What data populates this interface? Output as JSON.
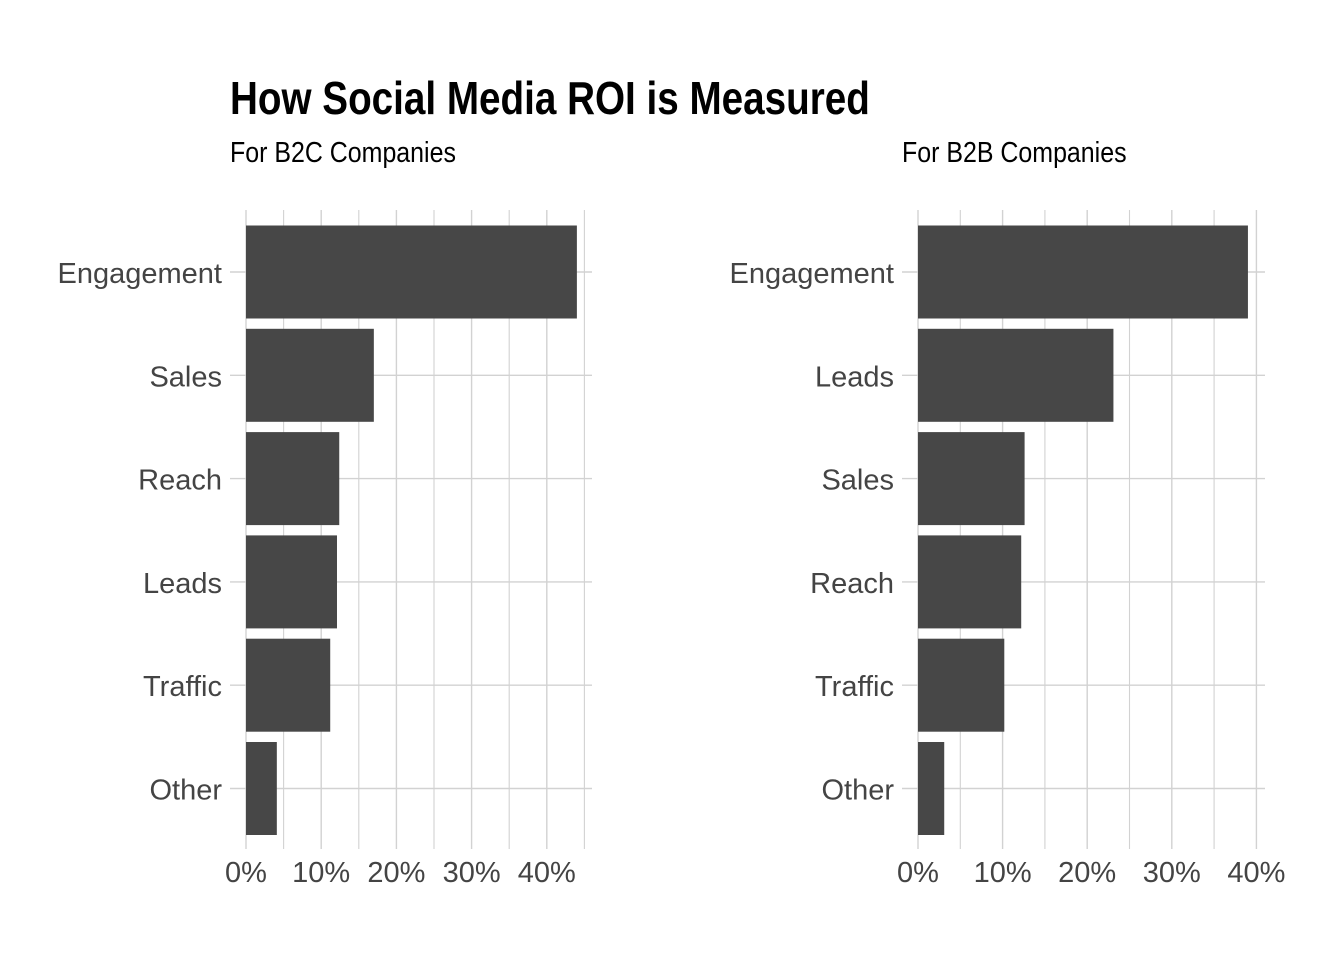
{
  "title": "How Social Media ROI is Measured",
  "colors": {
    "bar": "#474747",
    "grid": "#d2d2d2",
    "tick_text": "#444444",
    "title": "#000000",
    "background": "#ffffff"
  },
  "chart_data": [
    {
      "type": "bar",
      "orientation": "horizontal",
      "subtitle": "For B2C Companies",
      "categories": [
        "Engagement",
        "Sales",
        "Reach",
        "Leads",
        "Traffic",
        "Other"
      ],
      "values": [
        44,
        17,
        12.4,
        12.1,
        11.2,
        4.1
      ],
      "xlim": [
        0,
        45
      ],
      "x_ticks": [
        0,
        10,
        20,
        30,
        40
      ],
      "x_tick_labels": [
        "0%",
        "10%",
        "20%",
        "30%",
        "40%"
      ],
      "xlabel": "",
      "ylabel": "",
      "grid": true,
      "legend": "none"
    },
    {
      "type": "bar",
      "orientation": "horizontal",
      "subtitle": "For B2B Companies",
      "categories": [
        "Engagement",
        "Leads",
        "Sales",
        "Reach",
        "Traffic",
        "Other"
      ],
      "values": [
        39,
        23.1,
        12.6,
        12.2,
        10.2,
        3.1
      ],
      "xlim": [
        0,
        40
      ],
      "x_ticks": [
        0,
        10,
        20,
        30,
        40
      ],
      "x_tick_labels": [
        "0%",
        "10%",
        "20%",
        "30%",
        "40%"
      ],
      "xlabel": "",
      "ylabel": "",
      "grid": true,
      "legend": "none"
    }
  ]
}
